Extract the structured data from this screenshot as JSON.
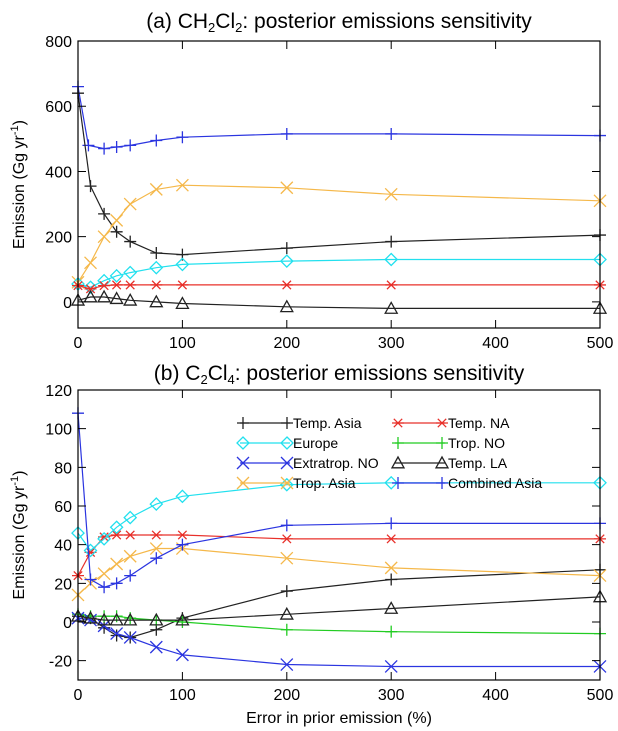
{
  "chart_data": [
    {
      "type": "line",
      "title": {
        "prefix": "(a) CH",
        "sub1": "2",
        "mid": "Cl",
        "sub2": "2",
        "suffix": ": posterior emissions sensitivity"
      },
      "xlabel": "",
      "ylabel": {
        "main": "Emission (Gg yr",
        "sup": "-1",
        "close": ")"
      },
      "xlim": [
        0,
        500
      ],
      "ylim": [
        -80,
        800
      ],
      "xticks": [
        "0",
        "100",
        "200",
        "300",
        "400",
        "500"
      ],
      "yticks": [
        "0",
        "200",
        "400",
        "600",
        "800"
      ],
      "xtick_values": [
        0,
        100,
        200,
        300,
        400,
        500
      ],
      "ytick_values": [
        0,
        200,
        400,
        600,
        800
      ],
      "series": [
        {
          "marker": "plus",
          "color": "#2b35e0",
          "x": [
            0,
            10,
            25,
            37,
            50,
            75,
            100,
            200,
            300,
            500
          ],
          "y": [
            660,
            480,
            470,
            475,
            480,
            495,
            505,
            515,
            515,
            510
          ]
        },
        {
          "marker": "plus",
          "color": "#222222",
          "x": [
            0,
            12,
            25,
            37,
            50,
            75,
            100,
            200,
            300,
            500
          ],
          "y": [
            640,
            355,
            270,
            215,
            185,
            150,
            145,
            165,
            185,
            205
          ]
        },
        {
          "marker": "x",
          "color": "#f5b84a",
          "x": [
            0,
            12,
            25,
            37,
            50,
            75,
            100,
            200,
            300,
            500
          ],
          "y": [
            60,
            120,
            200,
            250,
            300,
            345,
            358,
            350,
            330,
            310
          ]
        },
        {
          "marker": "diamond",
          "color": "#22e0ee",
          "x": [
            0,
            12,
            25,
            37,
            50,
            75,
            100,
            200,
            300,
            500
          ],
          "y": [
            55,
            45,
            65,
            80,
            90,
            105,
            115,
            125,
            130,
            130
          ]
        },
        {
          "marker": "asterisk",
          "color": "#e8302a",
          "x": [
            0,
            12,
            25,
            37,
            50,
            75,
            100,
            200,
            300,
            500
          ],
          "y": [
            50,
            40,
            50,
            52,
            52,
            52,
            52,
            52,
            52,
            52
          ]
        },
        {
          "marker": "triangle",
          "color": "#222222",
          "x": [
            0,
            12,
            25,
            37,
            50,
            75,
            100,
            200,
            300,
            500
          ],
          "y": [
            5,
            15,
            15,
            10,
            5,
            0,
            -5,
            -15,
            -20,
            -20
          ]
        }
      ]
    },
    {
      "type": "line",
      "title": {
        "prefix": "(b) C",
        "sub1": "2",
        "mid": "Cl",
        "sub2": "4",
        "suffix": ": posterior emissions sensitivity"
      },
      "xlabel": "Error in prior emission (%)",
      "ylabel": {
        "main": "Emission (Gg yr",
        "sup": "-1",
        "close": ")"
      },
      "xlim": [
        0,
        500
      ],
      "ylim": [
        -30,
        120
      ],
      "xticks": [
        "0",
        "100",
        "200",
        "300",
        "400",
        "500"
      ],
      "yticks": [
        "-20",
        "0",
        "20",
        "40",
        "60",
        "80",
        "100",
        "120"
      ],
      "xtick_values": [
        0,
        100,
        200,
        300,
        400,
        500
      ],
      "ytick_values": [
        -20,
        0,
        20,
        40,
        60,
        80,
        100,
        120
      ],
      "legend": "top-right",
      "series": [
        {
          "name": "Temp. Asia",
          "marker": "plus",
          "color": "#222222",
          "x": [
            0,
            12,
            25,
            37,
            50,
            75,
            100,
            200,
            300,
            500
          ],
          "y": [
            3,
            2,
            -3,
            -7,
            -8,
            -4,
            2,
            16,
            22,
            27
          ]
        },
        {
          "name": "Temp. NA",
          "marker": "asterisk",
          "color": "#e8302a",
          "x": [
            0,
            12,
            25,
            37,
            50,
            75,
            100,
            200,
            300,
            500
          ],
          "y": [
            24,
            36,
            44,
            45,
            45,
            45,
            45,
            43,
            43,
            43
          ]
        },
        {
          "name": "Europe",
          "marker": "diamond",
          "color": "#22e0ee",
          "x": [
            0,
            12,
            25,
            37,
            50,
            75,
            100,
            200,
            300,
            500
          ],
          "y": [
            46,
            37,
            43,
            49,
            54,
            61,
            65,
            71,
            72,
            72
          ]
        },
        {
          "name": "Trop. NO",
          "marker": "plus",
          "color": "#22cc22",
          "x": [
            0,
            12,
            25,
            37,
            50,
            75,
            100,
            200,
            300,
            500
          ],
          "y": [
            4,
            3,
            3,
            3,
            2,
            1,
            0,
            -4,
            -5,
            -6
          ]
        },
        {
          "name": "Extratrop. NO",
          "marker": "x",
          "color": "#2b35e0",
          "x": [
            0,
            12,
            25,
            37,
            50,
            75,
            100,
            200,
            300,
            500
          ],
          "y": [
            2,
            1,
            -2,
            -6,
            -8,
            -13,
            -17,
            -22,
            -23,
            -23
          ]
        },
        {
          "name": "Temp. LA",
          "marker": "triangle",
          "color": "#222222",
          "x": [
            0,
            12,
            25,
            37,
            50,
            75,
            100,
            200,
            300,
            500
          ],
          "y": [
            3,
            2,
            1,
            1,
            1,
            1,
            1,
            4,
            7,
            13
          ]
        },
        {
          "name": "Trop. Asia",
          "marker": "x",
          "color": "#f5b84a",
          "x": [
            0,
            12,
            25,
            37,
            50,
            75,
            100,
            200,
            300,
            500
          ],
          "y": [
            14,
            20,
            25,
            30,
            34,
            38,
            38,
            33,
            28,
            24
          ]
        },
        {
          "name": "Combined Asia",
          "marker": "plus",
          "color": "#2b35e0",
          "x": [
            0,
            12,
            25,
            37,
            50,
            75,
            100,
            200,
            300,
            500
          ],
          "y": [
            108,
            22,
            18,
            20,
            24,
            33,
            40,
            50,
            51,
            51
          ]
        }
      ]
    }
  ]
}
